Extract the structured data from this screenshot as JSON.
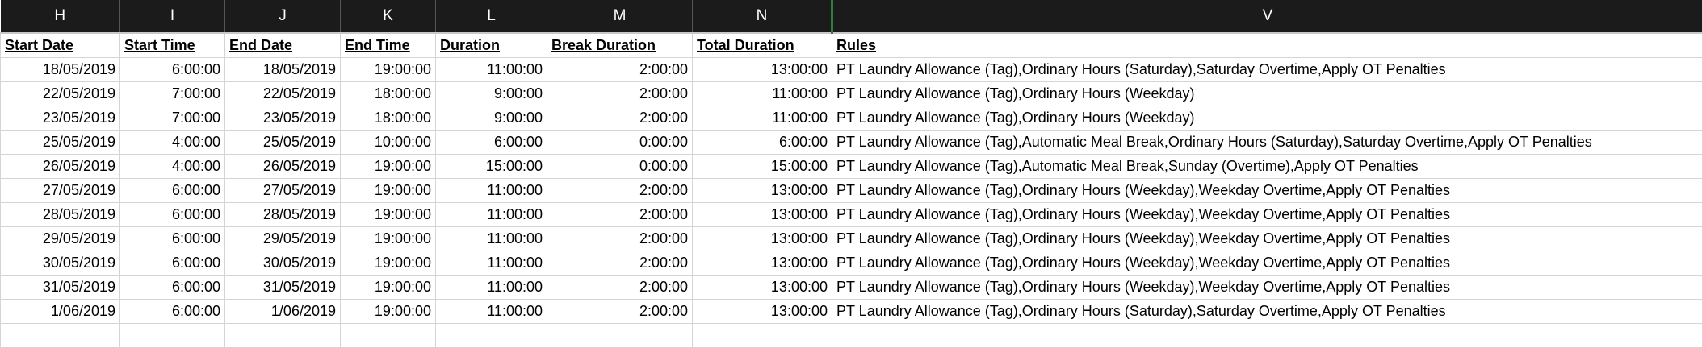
{
  "columns": [
    "H",
    "I",
    "J",
    "K",
    "L",
    "M",
    "N",
    "V"
  ],
  "headers": [
    "Start Date",
    "Start Time",
    "End Date",
    "End Time",
    "Duration",
    "Break Duration",
    "Total Duration",
    "Rules"
  ],
  "rows": [
    [
      "18/05/2019",
      "6:00:00",
      "18/05/2019",
      "19:00:00",
      "11:00:00",
      "2:00:00",
      "13:00:00",
      "PT Laundry Allowance (Tag),Ordinary Hours (Saturday),Saturday Overtime,Apply OT Penalties"
    ],
    [
      "22/05/2019",
      "7:00:00",
      "22/05/2019",
      "18:00:00",
      "9:00:00",
      "2:00:00",
      "11:00:00",
      "PT Laundry Allowance (Tag),Ordinary Hours (Weekday)"
    ],
    [
      "23/05/2019",
      "7:00:00",
      "23/05/2019",
      "18:00:00",
      "9:00:00",
      "2:00:00",
      "11:00:00",
      "PT Laundry Allowance (Tag),Ordinary Hours (Weekday)"
    ],
    [
      "25/05/2019",
      "4:00:00",
      "25/05/2019",
      "10:00:00",
      "6:00:00",
      "0:00:00",
      "6:00:00",
      "PT Laundry Allowance (Tag),Automatic Meal Break,Ordinary Hours (Saturday),Saturday Overtime,Apply OT Penalties"
    ],
    [
      "26/05/2019",
      "4:00:00",
      "26/05/2019",
      "19:00:00",
      "15:00:00",
      "0:00:00",
      "15:00:00",
      "PT Laundry Allowance (Tag),Automatic Meal Break,Sunday (Overtime),Apply OT Penalties"
    ],
    [
      "27/05/2019",
      "6:00:00",
      "27/05/2019",
      "19:00:00",
      "11:00:00",
      "2:00:00",
      "13:00:00",
      "PT Laundry Allowance (Tag),Ordinary Hours (Weekday),Weekday Overtime,Apply OT Penalties"
    ],
    [
      "28/05/2019",
      "6:00:00",
      "28/05/2019",
      "19:00:00",
      "11:00:00",
      "2:00:00",
      "13:00:00",
      "PT Laundry Allowance (Tag),Ordinary Hours (Weekday),Weekday Overtime,Apply OT Penalties"
    ],
    [
      "29/05/2019",
      "6:00:00",
      "29/05/2019",
      "19:00:00",
      "11:00:00",
      "2:00:00",
      "13:00:00",
      "PT Laundry Allowance (Tag),Ordinary Hours (Weekday),Weekday Overtime,Apply OT Penalties"
    ],
    [
      "30/05/2019",
      "6:00:00",
      "30/05/2019",
      "19:00:00",
      "11:00:00",
      "2:00:00",
      "13:00:00",
      "PT Laundry Allowance (Tag),Ordinary Hours (Weekday),Weekday Overtime,Apply OT Penalties"
    ],
    [
      "31/05/2019",
      "6:00:00",
      "31/05/2019",
      "19:00:00",
      "11:00:00",
      "2:00:00",
      "13:00:00",
      "PT Laundry Allowance (Tag),Ordinary Hours (Weekday),Weekday Overtime,Apply OT Penalties"
    ],
    [
      "1/06/2019",
      "6:00:00",
      "1/06/2019",
      "19:00:00",
      "11:00:00",
      "2:00:00",
      "13:00:00",
      "PT Laundry Allowance (Tag),Ordinary Hours (Saturday),Saturday Overtime,Apply OT Penalties"
    ]
  ],
  "colors": {
    "header_bg": "#1b1b1b",
    "selected_column_border": "#2e7d3c",
    "gridline": "#d4d4d4"
  }
}
